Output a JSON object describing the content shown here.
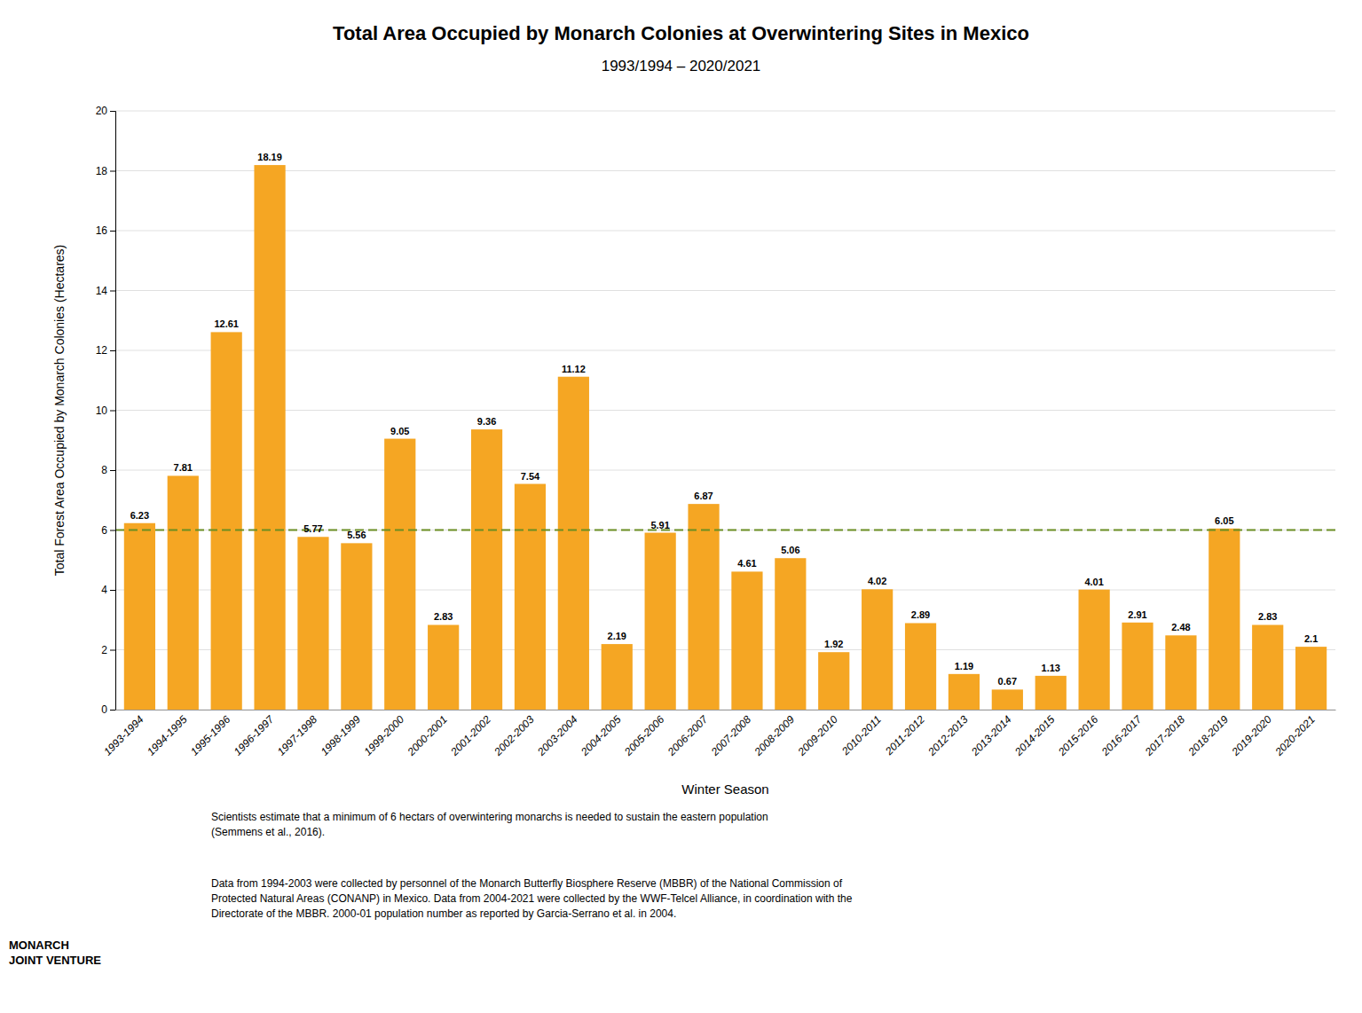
{
  "chart_data": {
    "type": "bar",
    "title": "Total Area Occupied by Monarch Colonies at Overwintering Sites in Mexico",
    "subtitle": "1993/1994 – 2020/2021",
    "xlabel": "Winter Season",
    "ylabel": "Total Forest Area Occupied by Monarch Colonies (Hectares)",
    "categories": [
      "1993-1994",
      "1994-1995",
      "1995-1996",
      "1996-1997",
      "1997-1998",
      "1998-1999",
      "1999-2000",
      "2000-2001",
      "2001-2002",
      "2002-2003",
      "2003-2004",
      "2004-2005",
      "2005-2006",
      "2006-2007",
      "2007-2008",
      "2008-2009",
      "2009-2010",
      "2010-2011",
      "2011-2012",
      "2012-2013",
      "2013-2014",
      "2014-2015",
      "2015-2016",
      "2016-2017",
      "2017-2018",
      "2018-2019",
      "2019-2020",
      "2020-2021"
    ],
    "values": [
      6.23,
      7.81,
      12.61,
      18.19,
      5.77,
      5.56,
      9.05,
      2.83,
      9.36,
      7.54,
      11.12,
      2.19,
      5.91,
      6.87,
      4.61,
      5.06,
      1.92,
      4.02,
      2.89,
      1.19,
      0.67,
      1.13,
      4.01,
      2.91,
      2.48,
      6.05,
      2.83,
      2.1
    ],
    "color": "#F5A623",
    "data_labels": true,
    "ylim": [
      0,
      20
    ],
    "yticks": [
      0,
      2,
      4,
      6,
      8,
      10,
      12,
      14,
      16,
      18,
      20
    ],
    "grid": true,
    "reference_line": {
      "value": 6.0,
      "color": "#6B8E23",
      "line_style": "dashed"
    },
    "footnotes": [
      "Scientists estimate that a minimum of 6 hectars of overwintering monarchs is needed to sustain the eastern population\n(Semmens et al., 2016).",
      "Data from 1994-2003 were collected by personnel of the Monarch Butterfly Biosphere Reserve (MBBR) of the National Commission of\nProtected Natural Areas (CONANP) in Mexico. Data from 2004-2021 were collected by the WWF-Telcel Alliance, in coordination with the\nDirectorate of the MBBR. 2000-01 population number as reported by Garcia-Serrano et al. in 2004."
    ],
    "annotations": [
      "MONARCH\nJOINT VENTURE"
    ]
  }
}
